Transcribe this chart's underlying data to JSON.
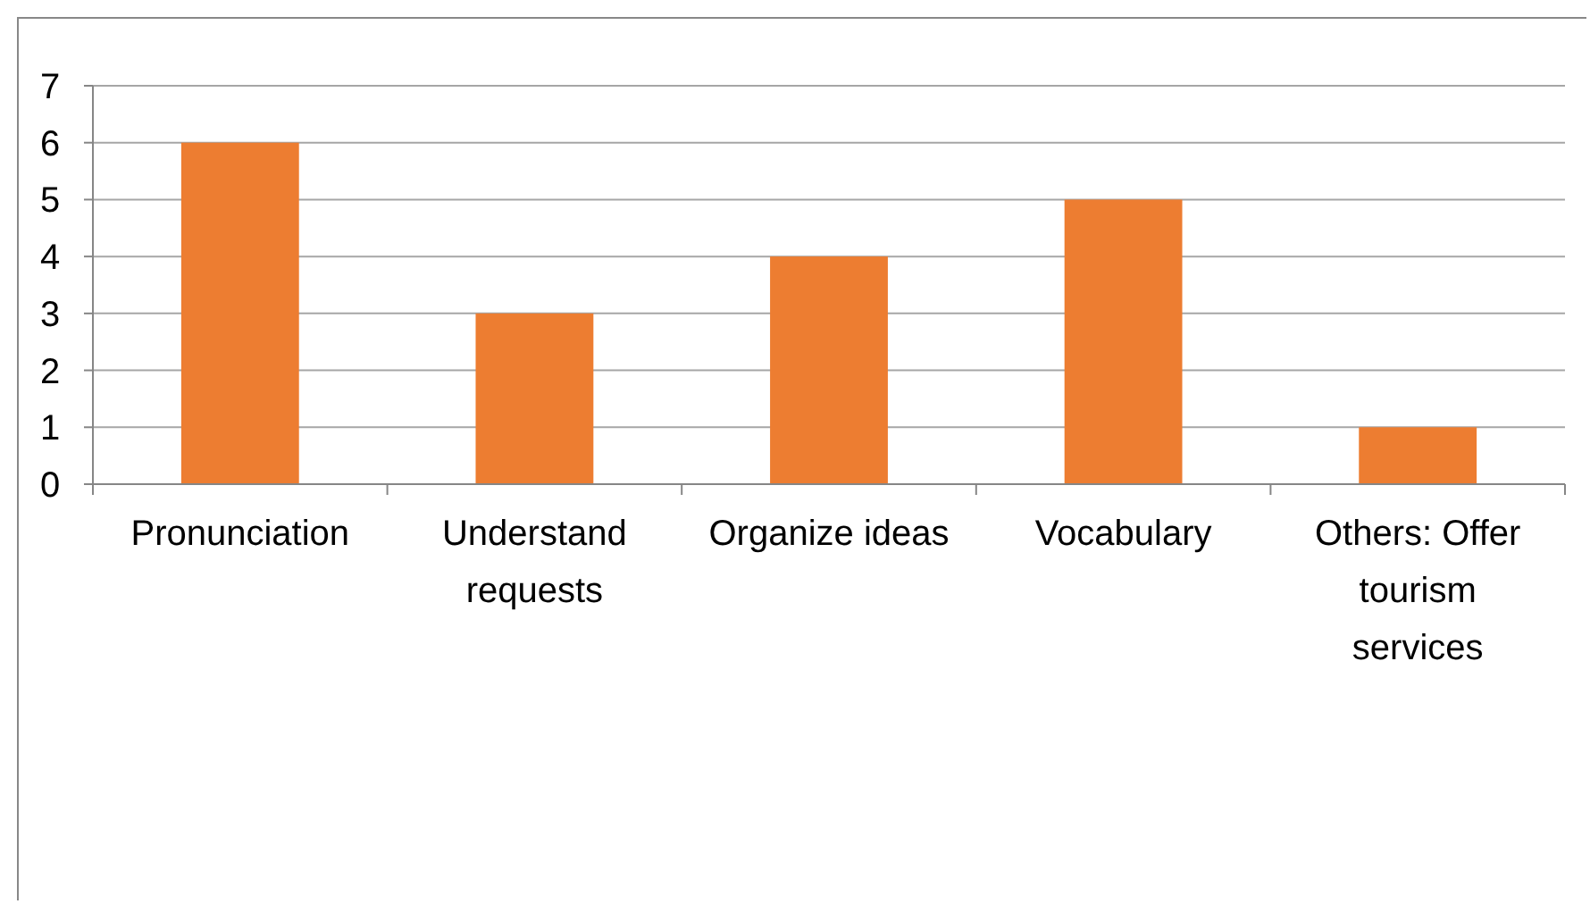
{
  "chart_data": {
    "type": "bar",
    "categories": [
      "Pronunciation",
      "Understand requests",
      "Organize ideas",
      "Vocabulary",
      "Others: Offer tourism services"
    ],
    "values": [
      6,
      3,
      4,
      5,
      1
    ],
    "color": "#ed7d31",
    "ylim": [
      0,
      7
    ],
    "yticks": [
      0,
      1,
      2,
      3,
      4,
      5,
      6,
      7
    ],
    "grid": "y"
  }
}
